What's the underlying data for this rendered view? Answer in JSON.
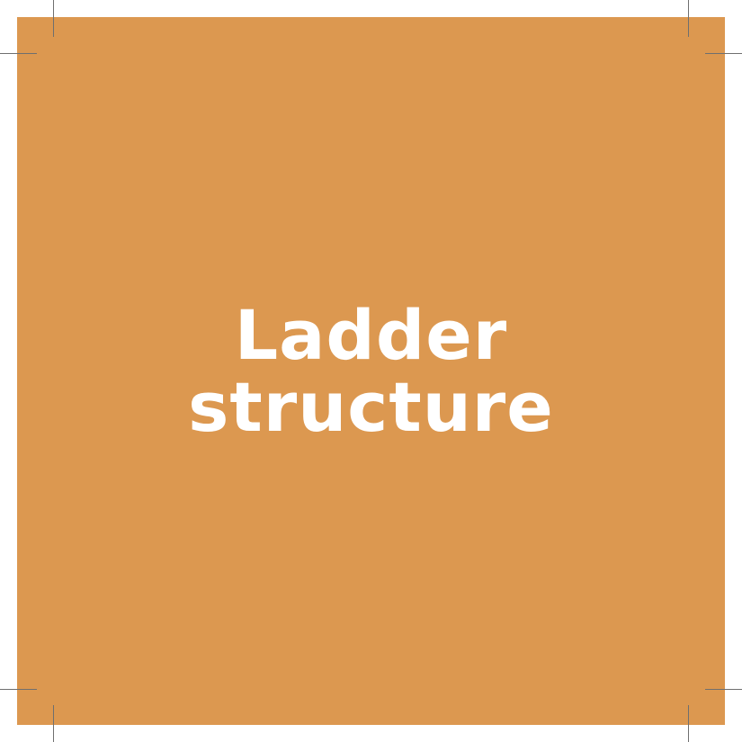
{
  "colors": {
    "card_background": "#DC9850",
    "title_text": "#FFFFFF",
    "crop_marks": "#6F6F6F"
  },
  "title": {
    "line1": "Ladder",
    "line2": "structure"
  }
}
